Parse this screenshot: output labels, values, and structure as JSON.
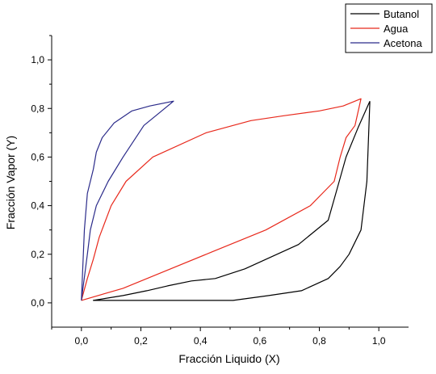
{
  "chart_data": {
    "type": "line",
    "xlabel": "Fracción Liquido (X)",
    "ylabel": "Fracción Vapor (Y)",
    "xlim": [
      -0.1,
      1.1
    ],
    "ylim": [
      -0.1,
      1.1
    ],
    "x_ticks": [
      0.0,
      0.2,
      0.4,
      0.6,
      0.8,
      1.0
    ],
    "x_tick_labels": [
      "0,0",
      "0,2",
      "0,4",
      "0,6",
      "0,8",
      "1,0"
    ],
    "y_ticks": [
      0.0,
      0.2,
      0.4,
      0.6,
      0.8,
      1.0
    ],
    "y_tick_labels": [
      "0,0",
      "0,2",
      "0,4",
      "0,6",
      "0,8",
      "1,0"
    ],
    "grid": false,
    "legend_position": "top-right",
    "series": [
      {
        "name": "Butanol",
        "color": "#000000",
        "x": [
          0.97,
          0.93,
          0.89,
          0.86,
          0.83,
          0.73,
          0.55,
          0.45,
          0.37,
          0.29,
          0.22,
          0.14,
          0.04,
          0.05,
          0.2,
          0.35,
          0.51,
          0.63,
          0.74,
          0.83,
          0.87,
          0.9,
          0.94,
          0.96,
          0.97
        ],
        "y": [
          0.83,
          0.72,
          0.6,
          0.47,
          0.34,
          0.24,
          0.14,
          0.1,
          0.09,
          0.07,
          0.05,
          0.03,
          0.01,
          0.01,
          0.01,
          0.01,
          0.01,
          0.03,
          0.05,
          0.1,
          0.15,
          0.2,
          0.3,
          0.5,
          0.83
        ]
      },
      {
        "name": "Agua",
        "color": "#e8291c",
        "x": [
          0.0,
          0.02,
          0.04,
          0.06,
          0.1,
          0.15,
          0.24,
          0.42,
          0.57,
          0.68,
          0.8,
          0.88,
          0.94,
          0.92,
          0.89,
          0.87,
          0.85,
          0.81,
          0.77,
          0.62,
          0.44,
          0.28,
          0.14,
          0.0
        ],
        "y": [
          0.01,
          0.1,
          0.18,
          0.27,
          0.4,
          0.5,
          0.6,
          0.7,
          0.75,
          0.77,
          0.79,
          0.81,
          0.84,
          0.73,
          0.68,
          0.6,
          0.5,
          0.45,
          0.4,
          0.3,
          0.21,
          0.13,
          0.06,
          0.01
        ]
      },
      {
        "name": "Acetona",
        "color": "#2b2b8a",
        "x": [
          0.0,
          0.01,
          0.02,
          0.04,
          0.05,
          0.07,
          0.11,
          0.17,
          0.23,
          0.31,
          0.26,
          0.21,
          0.14,
          0.09,
          0.05,
          0.03,
          0.02,
          0.0
        ],
        "y": [
          0.01,
          0.3,
          0.45,
          0.55,
          0.62,
          0.68,
          0.74,
          0.79,
          0.81,
          0.83,
          0.78,
          0.73,
          0.6,
          0.5,
          0.4,
          0.3,
          0.2,
          0.01
        ]
      }
    ]
  }
}
